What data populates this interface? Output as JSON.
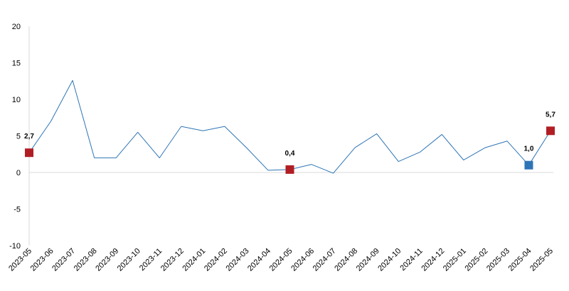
{
  "chart_data": {
    "type": "line",
    "title": "",
    "xlabel": "",
    "ylabel": "",
    "ylim": [
      -10,
      20
    ],
    "yticks": [
      20,
      15,
      10,
      5,
      0,
      -5,
      -10
    ],
    "grid": false,
    "legend": "none",
    "categories": [
      "2023-05",
      "2023-06",
      "2023-07",
      "2023-08",
      "2023-09",
      "2023-10",
      "2023-11",
      "2023-12",
      "2024-01",
      "2024-02",
      "2024-03",
      "2024-04",
      "2024-05",
      "2024-06",
      "2024-07",
      "2024-08",
      "2024-09",
      "2024-10",
      "2024-11",
      "2024-12",
      "2025-01",
      "2025-02",
      "2025-03",
      "2025-04",
      "2025-05"
    ],
    "series": [
      {
        "color": "#2e75b6",
        "values": [
          2.7,
          7.0,
          12.6,
          2.0,
          2.0,
          5.5,
          2.0,
          6.3,
          5.7,
          6.3,
          3.4,
          0.3,
          0.4,
          1.1,
          -0.1,
          3.4,
          5.3,
          1.5,
          2.8,
          5.2,
          1.7,
          3.4,
          4.3,
          1.0,
          5.7
        ]
      }
    ],
    "highlights": [
      {
        "category": "2023-05",
        "value": 2.7,
        "label": "2,7",
        "color": "#b01e24"
      },
      {
        "category": "2024-05",
        "value": 0.4,
        "label": "0,4",
        "color": "#b01e24"
      },
      {
        "category": "2025-04",
        "value": 1.0,
        "label": "1,0",
        "color": "#2e75b6"
      },
      {
        "category": "2025-05",
        "value": 5.7,
        "label": "5,7",
        "color": "#b01e24"
      }
    ]
  }
}
